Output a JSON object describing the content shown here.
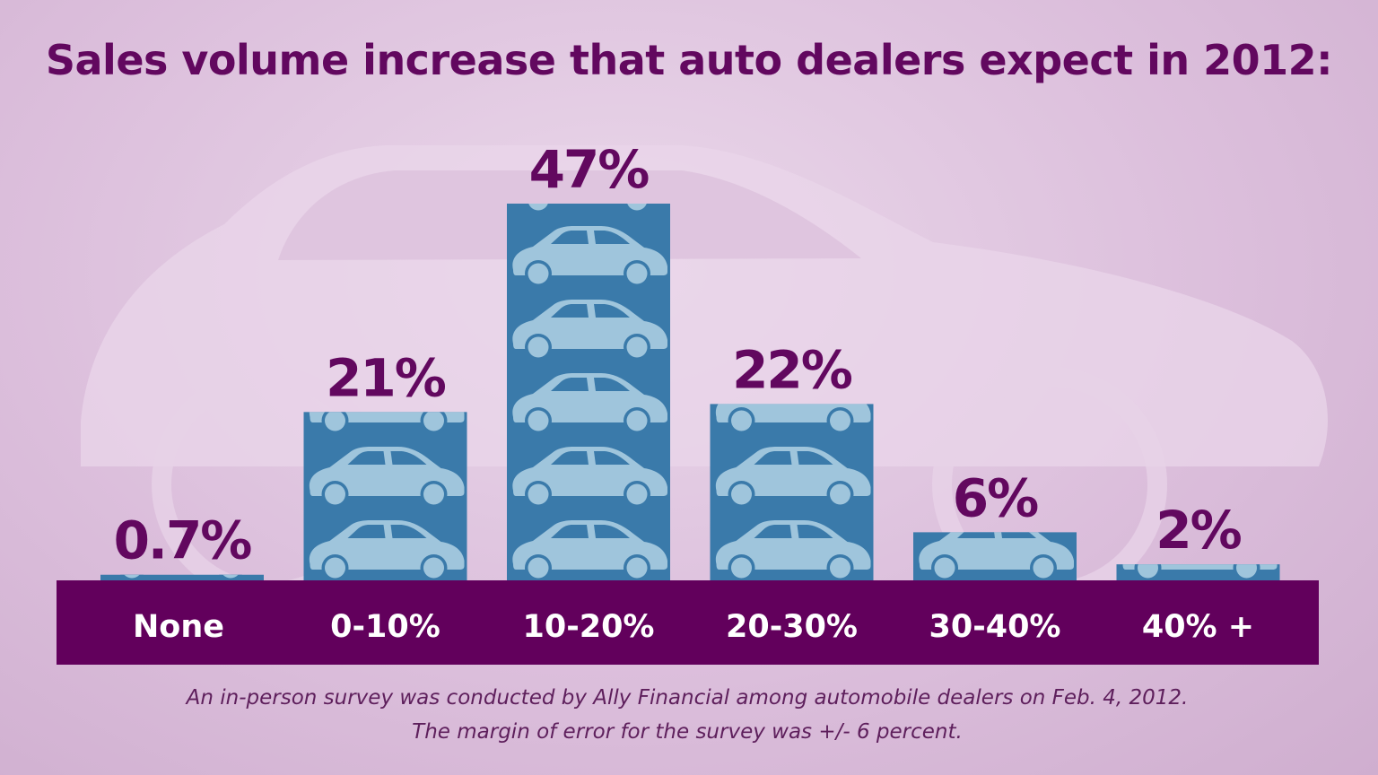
{
  "chart_data": {
    "type": "bar",
    "title": "Sales volume increase that auto dealers expect in 2012:",
    "categories": [
      "None",
      "0-10%",
      "10-20%",
      "20-30%",
      "30-40%",
      "40% +"
    ],
    "values": [
      0.7,
      21,
      47,
      22,
      6,
      2
    ],
    "data_labels": [
      "0.7%",
      "21%",
      "47%",
      "22%",
      "6%",
      "2%"
    ],
    "xlabel": "",
    "ylabel": "",
    "ylim": [
      0,
      50
    ],
    "grid": false,
    "legend": "none",
    "colors": {
      "bar": "#3a7aaa",
      "car_icon": "#9fc5dc",
      "title": "#62085f",
      "category_band": "#62005c",
      "background": "#dcbfdc"
    }
  },
  "footnote": {
    "line1": "An in-person survey was conducted by Ally Financial among automobile dealers on Feb. 4, 2012.",
    "line2": "The margin of error for the survey was +/- 6 percent."
  }
}
